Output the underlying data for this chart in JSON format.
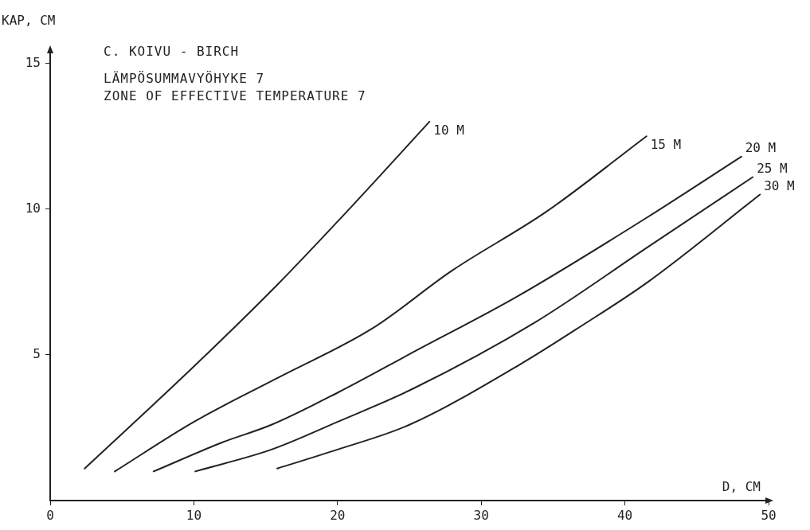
{
  "chart_data": {
    "type": "line",
    "title": "C. KOIVU - BIRCH",
    "subtitle": "LÄMPÖSUMMAVYÖHYKE 7\nZONE OF EFFECTIVE TEMPERATURE 7",
    "xlabel": "D, CM",
    "ylabel": "KAP, CM",
    "xlim": [
      0,
      50
    ],
    "xticks": [
      0,
      10,
      20,
      30,
      40,
      50
    ],
    "ylim": [
      0,
      15.4
    ],
    "yticks": [
      5,
      10,
      15
    ],
    "grid": false,
    "legend": false,
    "marker": "none",
    "line_style": "solid",
    "series": [
      {
        "name": "10 M",
        "color": "#222222",
        "x": [
          2.4,
          10,
          15.8,
          21,
          26.4
        ],
        "values": [
          1.1,
          4.6,
          7.4,
          10.1,
          13.0
        ]
      },
      {
        "name": "15 M",
        "color": "#222222",
        "x": [
          4.5,
          10,
          15.8,
          22.4,
          28,
          34.5,
          41.5
        ],
        "values": [
          1.0,
          2.7,
          4.2,
          5.9,
          7.9,
          9.9,
          12.5
        ]
      },
      {
        "name": "20 M",
        "color": "#222222",
        "x": [
          7.2,
          12,
          15.4,
          20,
          25.3,
          32.5,
          41.5,
          48.1
        ],
        "values": [
          1.0,
          2.0,
          2.6,
          3.7,
          5.1,
          7.0,
          9.7,
          11.8
        ]
      },
      {
        "name": "25 M",
        "color": "#222222",
        "x": [
          10.1,
          15.4,
          20,
          25.3,
          33.7,
          41.6,
          48.9
        ],
        "values": [
          1.0,
          1.75,
          2.7,
          3.85,
          6.1,
          8.7,
          11.1
        ]
      },
      {
        "name": "30 M",
        "color": "#222222",
        "x": [
          15.8,
          20,
          25,
          32.8,
          37,
          41.6,
          49.4
        ],
        "values": [
          1.1,
          1.75,
          2.6,
          4.7,
          6.0,
          7.5,
          10.5
        ]
      }
    ]
  }
}
